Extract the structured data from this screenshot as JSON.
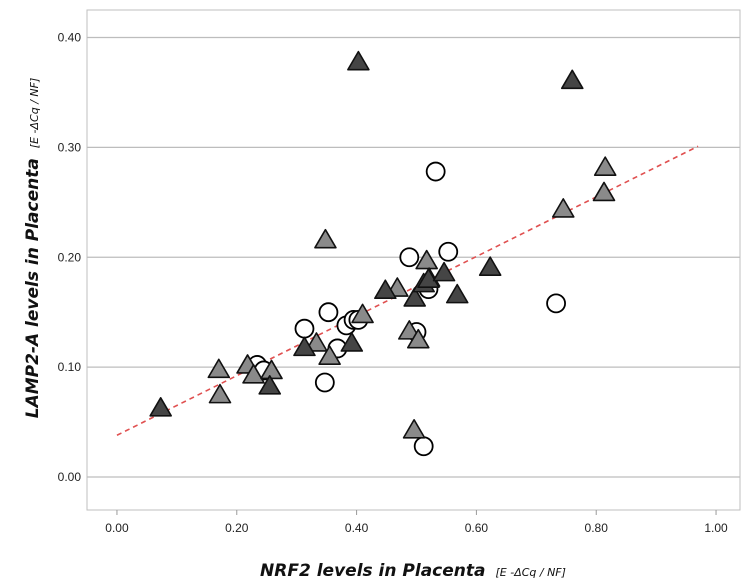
{
  "chart_data": {
    "type": "scatter",
    "xlabel": "NRF2 levels in Placenta",
    "xlabel_unit": "[E -ΔCq / NF]",
    "ylabel": "LAMP2-A levels in Placenta",
    "ylabel_unit": "[E -ΔCq / NF]",
    "xlim": [
      -0.05,
      1.04
    ],
    "ylim": [
      -0.03,
      0.425
    ],
    "x_ticks": [
      "0.00",
      "0.20",
      "0.40",
      "0.60",
      "0.80",
      "1.00"
    ],
    "x_tick_values": [
      0,
      0.2,
      0.4,
      0.6,
      0.8,
      1.0
    ],
    "y_ticks": [
      "0.00",
      "0.10",
      "0.20",
      "0.30",
      "0.40"
    ],
    "y_tick_values": [
      0,
      0.1,
      0.2,
      0.3,
      0.4
    ],
    "grid": "horizontal",
    "series": [
      {
        "marker": "open-circle",
        "color": "#000000",
        "points": [
          [
            0.234,
            0.102
          ],
          [
            0.245,
            0.097
          ],
          [
            0.313,
            0.135
          ],
          [
            0.347,
            0.086
          ],
          [
            0.353,
            0.15
          ],
          [
            0.368,
            0.117
          ],
          [
            0.383,
            0.138
          ],
          [
            0.395,
            0.143
          ],
          [
            0.403,
            0.143
          ],
          [
            0.488,
            0.2
          ],
          [
            0.5,
            0.132
          ],
          [
            0.512,
            0.028
          ],
          [
            0.52,
            0.171
          ],
          [
            0.532,
            0.278
          ],
          [
            0.553,
            0.205
          ],
          [
            0.733,
            0.158
          ]
        ]
      },
      {
        "marker": "triangle",
        "color": "#8a8a8a",
        "points": [
          [
            0.17,
            0.098
          ],
          [
            0.172,
            0.075
          ],
          [
            0.218,
            0.102
          ],
          [
            0.228,
            0.093
          ],
          [
            0.258,
            0.097
          ],
          [
            0.333,
            0.122
          ],
          [
            0.348,
            0.216
          ],
          [
            0.355,
            0.11
          ],
          [
            0.41,
            0.148
          ],
          [
            0.468,
            0.172
          ],
          [
            0.488,
            0.133
          ],
          [
            0.496,
            0.043
          ],
          [
            0.503,
            0.125
          ],
          [
            0.517,
            0.197
          ],
          [
            0.521,
            0.181
          ],
          [
            0.745,
            0.244
          ],
          [
            0.813,
            0.259
          ],
          [
            0.815,
            0.282
          ]
        ]
      },
      {
        "marker": "triangle",
        "color": "#454545",
        "points": [
          [
            0.073,
            0.063
          ],
          [
            0.255,
            0.083
          ],
          [
            0.313,
            0.118
          ],
          [
            0.392,
            0.122
          ],
          [
            0.403,
            0.378
          ],
          [
            0.448,
            0.17
          ],
          [
            0.497,
            0.163
          ],
          [
            0.512,
            0.176
          ],
          [
            0.52,
            0.18
          ],
          [
            0.546,
            0.186
          ],
          [
            0.568,
            0.166
          ],
          [
            0.623,
            0.191
          ],
          [
            0.76,
            0.361
          ]
        ]
      }
    ],
    "trendline": {
      "style": "dashed",
      "color": "#e05050",
      "x": [
        0.0,
        0.97
      ],
      "y": [
        0.038,
        0.301
      ]
    }
  }
}
